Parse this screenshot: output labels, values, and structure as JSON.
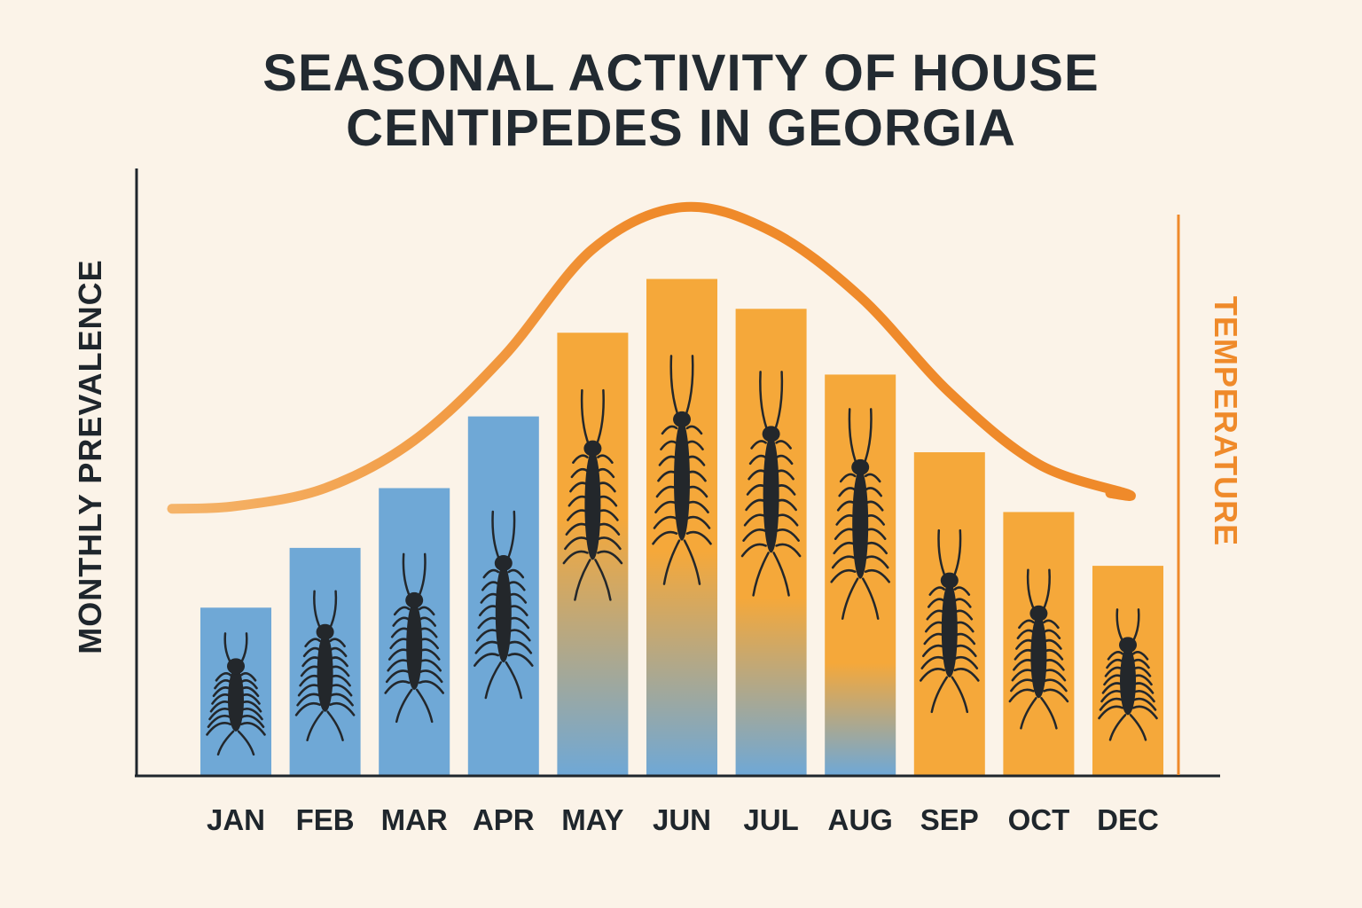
{
  "chart_data": {
    "type": "bar",
    "title_lines": [
      "SEASONAL ACTIVITY OF HOUSE",
      "CENTIPEDES IN GEORGIA"
    ],
    "ylabel": "MONTHLY PREVALENCE",
    "y2label": "TEMPERATURE",
    "categories": [
      "JAN",
      "FEB",
      "MAR",
      "APR",
      "MAY",
      "JUN",
      "JUL",
      "AUG",
      "SEP",
      "OCT",
      "DEC"
    ],
    "series": [
      {
        "values": [
          28,
          38,
          48,
          60,
          74,
          83,
          78,
          67,
          54,
          44,
          35
        ]
      },
      {
        "type": "line",
        "axis": "secondary",
        "values": [
          45,
          48,
          56,
          70,
          88,
          95,
          91,
          80,
          64,
          52,
          47
        ]
      }
    ],
    "ylim": [
      0,
      100
    ],
    "y2lim": [
      0,
      100
    ],
    "bar_colors": [
      "#6fa8d6",
      "#6fa8d6",
      "#6fa8d6",
      "#6fa8d6",
      "#f5a83a",
      "#f5a83a",
      "#f5a83a",
      "#f5a83a",
      "#f5a83a",
      "#f5a83a",
      "#f5a83a"
    ],
    "cool_color": "#6fa8d6",
    "warm_color": "#f5a83a",
    "line_color": "#ef8a2a",
    "axis_color": "#1f262c",
    "grid": false
  }
}
